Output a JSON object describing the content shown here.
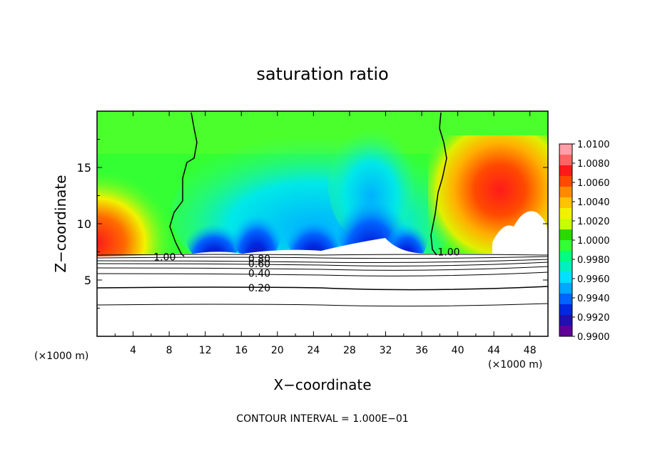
{
  "chart_data": {
    "type": "heatmap",
    "title": "saturation ratio",
    "xlabel": "X−coordinate",
    "ylabel": "Z−coordinate",
    "x_unit_left": "(×1000 m)",
    "x_unit_right": "(×1000 m)",
    "footer": "CONTOUR INTERVAL = 1.000E−01",
    "xlim": [
      0,
      50
    ],
    "ylim": [
      0,
      20
    ],
    "x_ticks": [
      "4",
      "8",
      "12",
      "16",
      "20",
      "24",
      "28",
      "32",
      "36",
      "40",
      "44",
      "48"
    ],
    "y_ticks": [
      "5",
      "10",
      "15"
    ],
    "x_tick_values": [
      4,
      8,
      12,
      16,
      20,
      24,
      28,
      32,
      36,
      40,
      44,
      48
    ],
    "y_tick_values": [
      5,
      10,
      15
    ],
    "colorbar": {
      "labels": [
        "1.0100",
        "1.0080",
        "1.0060",
        "1.0040",
        "1.0020",
        "1.0000",
        "0.9980",
        "0.9960",
        "0.9940",
        "0.9920",
        "0.9900"
      ],
      "colors": [
        "#ff9fa8",
        "#ff6464",
        "#ff1a1a",
        "#ff4a00",
        "#ff8a00",
        "#ffc400",
        "#f2f200",
        "#c8ff00",
        "#2bd800",
        "#33ff33",
        "#00ff80",
        "#00f0c0",
        "#00e0ff",
        "#00a8ff",
        "#0064ff",
        "#0028e0",
        "#2010b0",
        "#600098"
      ]
    },
    "contour_labels": [
      {
        "text": "1.00",
        "x": 7.5,
        "z": 7.05
      },
      {
        "text": "0.80",
        "x": 18.0,
        "z": 6.9
      },
      {
        "text": "0.60",
        "x": 18.0,
        "z": 6.45
      },
      {
        "text": "0.40",
        "x": 18.0,
        "z": 5.6
      },
      {
        "text": "0.20",
        "x": 18.0,
        "z": 4.3
      },
      {
        "text": "1.00",
        "x": 39.0,
        "z": 7.5
      }
    ]
  }
}
